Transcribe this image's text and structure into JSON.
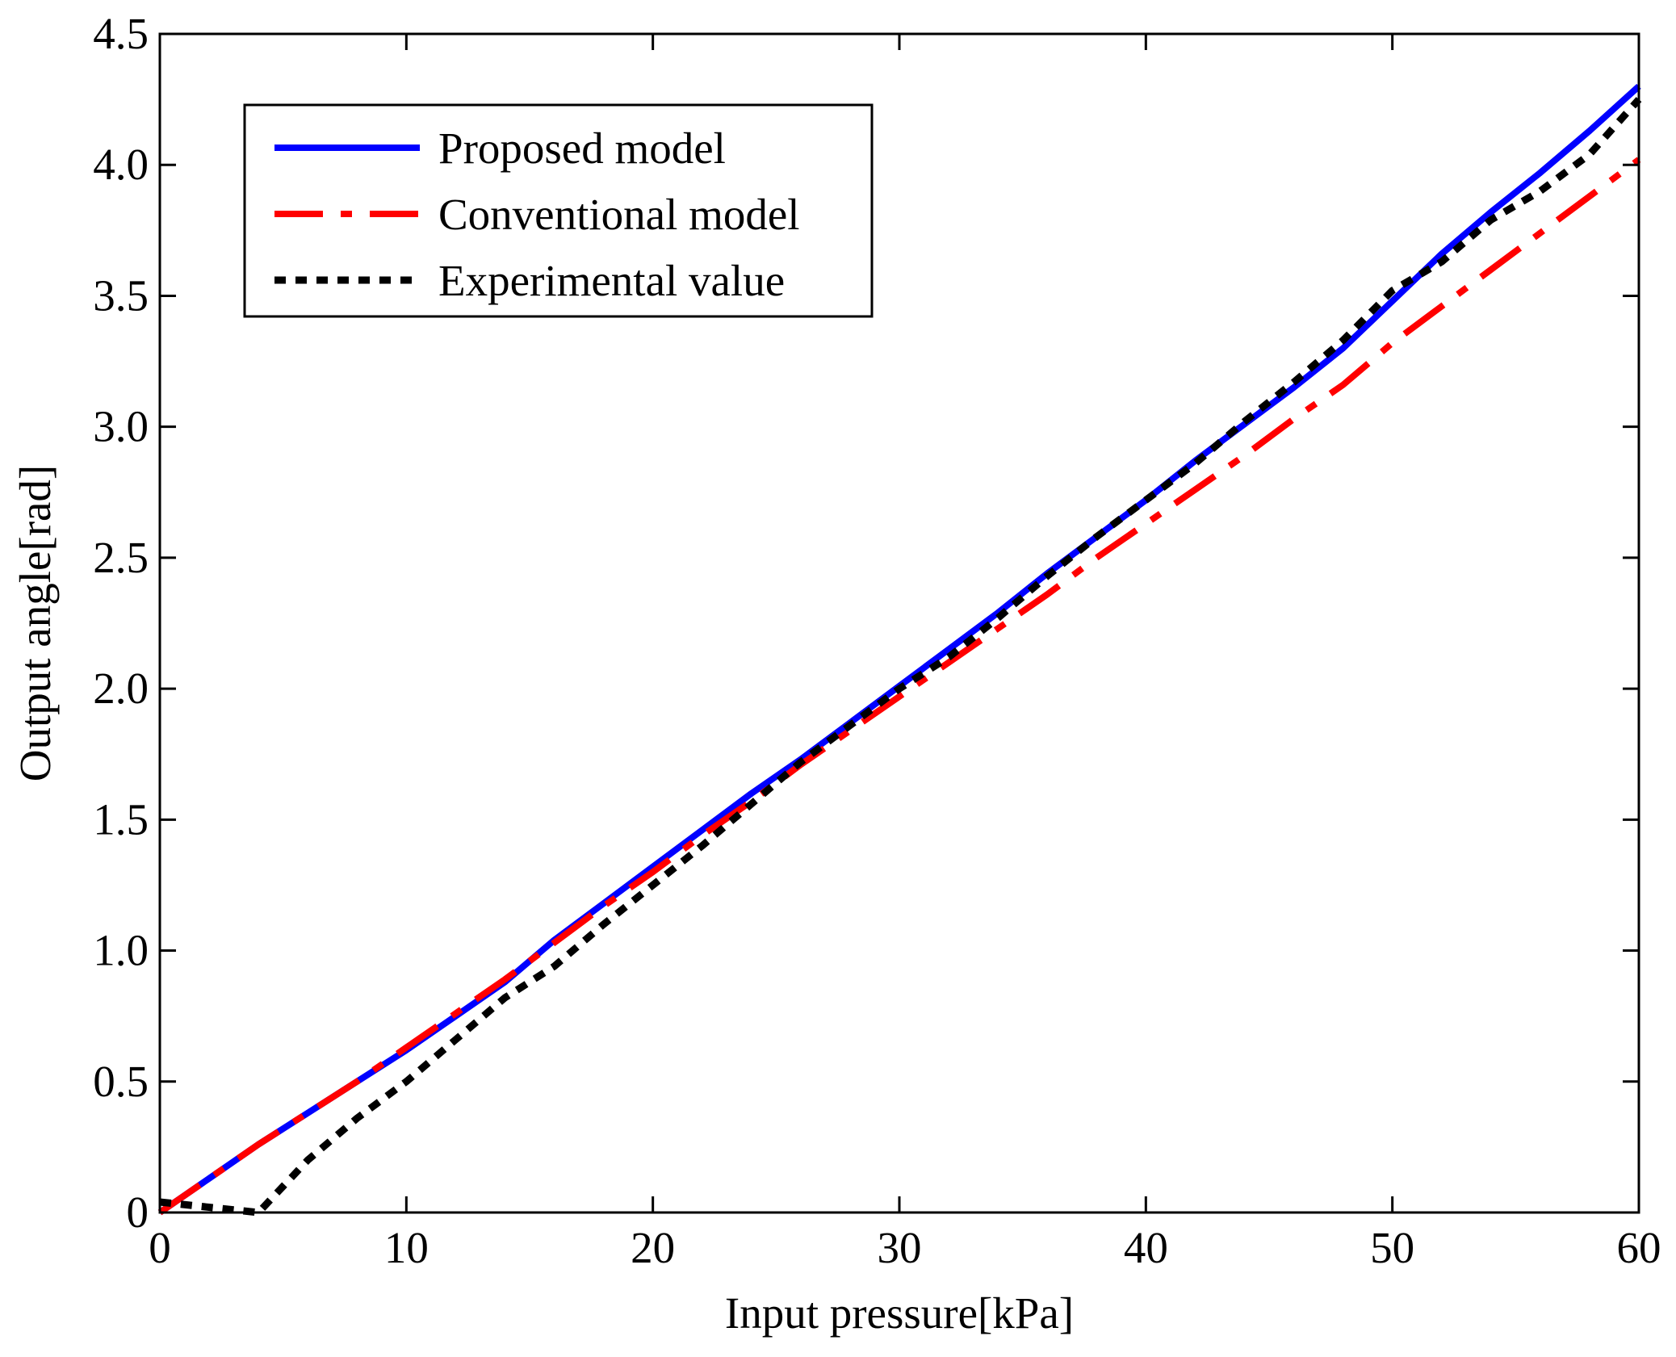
{
  "chart_data": {
    "type": "line",
    "title": "",
    "xlabel": "Input pressure[kPa]",
    "ylabel": "Output angle[rad]",
    "xlim": [
      0,
      60
    ],
    "ylim": [
      0,
      4.5
    ],
    "xticks": [
      0,
      10,
      20,
      30,
      40,
      50,
      60
    ],
    "xtick_labels": [
      "0",
      "10",
      "20",
      "30",
      "40",
      "50",
      "60"
    ],
    "yticks": [
      0,
      0.5,
      1.0,
      1.5,
      2.0,
      2.5,
      3.0,
      3.5,
      4.0,
      4.5
    ],
    "ytick_labels": [
      "0",
      "0.5",
      "1.0",
      "1.5",
      "2.0",
      "2.5",
      "3.0",
      "3.5",
      "4.0",
      "4.5"
    ],
    "grid": false,
    "legend_position": "top-left",
    "series": [
      {
        "name": "Proposed model",
        "color": "#0000ff",
        "style": "solid",
        "x": [
          0,
          2,
          4,
          6,
          8,
          10,
          12,
          14,
          16,
          18,
          20,
          22,
          24,
          26,
          28,
          30,
          32,
          34,
          36,
          38,
          40,
          42,
          44,
          46,
          48,
          50,
          52,
          54,
          56,
          58,
          60
        ],
        "y": [
          0,
          0.13,
          0.26,
          0.38,
          0.5,
          0.62,
          0.75,
          0.88,
          1.04,
          1.18,
          1.32,
          1.46,
          1.6,
          1.73,
          1.87,
          2.01,
          2.15,
          2.29,
          2.44,
          2.58,
          2.72,
          2.87,
          3.01,
          3.15,
          3.3,
          3.48,
          3.66,
          3.82,
          3.97,
          4.13,
          4.3
        ]
      },
      {
        "name": "Conventional model",
        "color": "#ff0000",
        "style": "dashdot",
        "x": [
          0,
          2,
          4,
          6,
          8,
          10,
          12,
          14,
          16,
          18,
          20,
          22,
          24,
          26,
          28,
          30,
          32,
          34,
          36,
          38,
          40,
          42,
          44,
          46,
          48,
          50,
          52,
          54,
          56,
          58,
          60
        ],
        "y": [
          0,
          0.13,
          0.26,
          0.38,
          0.5,
          0.63,
          0.76,
          0.89,
          1.03,
          1.17,
          1.3,
          1.44,
          1.57,
          1.71,
          1.84,
          1.97,
          2.1,
          2.23,
          2.36,
          2.5,
          2.63,
          2.76,
          2.89,
          3.03,
          3.16,
          3.32,
          3.46,
          3.6,
          3.74,
          3.88,
          4.02
        ]
      },
      {
        "name": "Experimental value",
        "color": "#000000",
        "style": "dotted",
        "x": [
          0,
          2,
          4,
          6,
          8,
          10,
          12,
          14,
          16,
          18,
          20,
          22,
          24,
          26,
          28,
          30,
          32,
          34,
          36,
          38,
          40,
          42,
          44,
          46,
          48,
          50,
          52,
          54,
          56,
          58,
          60
        ],
        "y": [
          0.04,
          0.02,
          0.0,
          0.2,
          0.36,
          0.5,
          0.66,
          0.82,
          0.94,
          1.1,
          1.25,
          1.4,
          1.56,
          1.72,
          1.86,
          2.0,
          2.12,
          2.27,
          2.43,
          2.58,
          2.72,
          2.86,
          3.02,
          3.17,
          3.33,
          3.52,
          3.63,
          3.79,
          3.9,
          4.04,
          4.25
        ]
      }
    ]
  }
}
